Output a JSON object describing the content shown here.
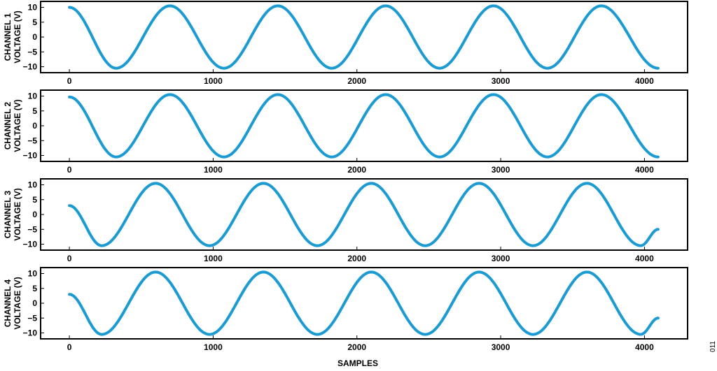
{
  "figure": {
    "xlabel": "SAMPLES",
    "figure_id": "011"
  },
  "style": {
    "line_color": "#1b9bd1",
    "frame_color": "#000000"
  },
  "chart_data": [
    {
      "type": "line",
      "ylabel_line1": "CHANNEL 1",
      "ylabel_line2": "VOLTAGE (V)",
      "xlim": [
        -200,
        4300
      ],
      "ylim": [
        -12,
        12
      ],
      "xticks": [
        0,
        1000,
        2000,
        3000,
        4000
      ],
      "yticks": [
        10,
        5,
        0,
        -5,
        -10
      ],
      "series": [
        {
          "amplitude": 10.5,
          "period": 750,
          "x_range": [
            0,
            4095
          ],
          "key_points": [
            [
              0,
              10
            ],
            [
              325,
              -10.5
            ],
            [
              700,
              10.5
            ],
            [
              1075,
              -10.5
            ],
            [
              1450,
              10.5
            ],
            [
              1825,
              -10.5
            ],
            [
              2200,
              10.5
            ],
            [
              2575,
              -10.5
            ],
            [
              2950,
              10.5
            ],
            [
              3325,
              -10.5
            ],
            [
              3700,
              10.5
            ],
            [
              4095,
              -10.5
            ]
          ]
        }
      ]
    },
    {
      "type": "line",
      "ylabel_line1": "CHANNEL 2",
      "ylabel_line2": "VOLTAGE (V)",
      "xlim": [
        -200,
        4300
      ],
      "ylim": [
        -12,
        12
      ],
      "xticks": [
        0,
        1000,
        2000,
        3000,
        4000
      ],
      "yticks": [
        10,
        5,
        0,
        -5,
        -10
      ],
      "series": [
        {
          "amplitude": 10.5,
          "period": 750,
          "x_range": [
            0,
            4095
          ],
          "key_points": [
            [
              0,
              9.7
            ],
            [
              325,
              -10.5
            ],
            [
              700,
              10.5
            ],
            [
              1075,
              -10.5
            ],
            [
              1450,
              10.5
            ],
            [
              1825,
              -10.5
            ],
            [
              2200,
              10.5
            ],
            [
              2575,
              -10.5
            ],
            [
              2950,
              10.5
            ],
            [
              3325,
              -10.5
            ],
            [
              3700,
              10.5
            ],
            [
              4095,
              -10.5
            ]
          ]
        }
      ]
    },
    {
      "type": "line",
      "ylabel_line1": "CHANNEL 3",
      "ylabel_line2": "VOLTAGE (V)",
      "xlim": [
        -200,
        4300
      ],
      "ylim": [
        -12,
        12
      ],
      "xticks": [
        0,
        1000,
        2000,
        3000,
        4000
      ],
      "yticks": [
        10,
        5,
        0,
        -5,
        -10
      ],
      "series": [
        {
          "amplitude": 10.5,
          "period": 750,
          "x_range": [
            0,
            4095
          ],
          "key_points": [
            [
              0,
              3
            ],
            [
              225,
              -10.5
            ],
            [
              600,
              10.5
            ],
            [
              975,
              -10.5
            ],
            [
              1350,
              10.5
            ],
            [
              1725,
              -10.5
            ],
            [
              2100,
              10.5
            ],
            [
              2475,
              -10.5
            ],
            [
              2850,
              10.5
            ],
            [
              3225,
              -10.5
            ],
            [
              3600,
              10.5
            ],
            [
              3975,
              -10.5
            ],
            [
              4095,
              -5
            ]
          ]
        }
      ]
    },
    {
      "type": "line",
      "ylabel_line1": "CHANNEL 4",
      "ylabel_line2": "VOLTAGE (V)",
      "xlim": [
        -200,
        4300
      ],
      "ylim": [
        -12,
        12
      ],
      "xticks": [
        0,
        1000,
        2000,
        3000,
        4000
      ],
      "yticks": [
        10,
        5,
        0,
        -5,
        -10
      ],
      "series": [
        {
          "amplitude": 10.5,
          "period": 750,
          "x_range": [
            0,
            4095
          ],
          "key_points": [
            [
              0,
              3
            ],
            [
              225,
              -10.5
            ],
            [
              600,
              10.5
            ],
            [
              975,
              -10.5
            ],
            [
              1350,
              10.5
            ],
            [
              1725,
              -10.5
            ],
            [
              2100,
              10.5
            ],
            [
              2475,
              -10.5
            ],
            [
              2850,
              10.5
            ],
            [
              3225,
              -10.5
            ],
            [
              3600,
              10.5
            ],
            [
              3975,
              -10.5
            ],
            [
              4095,
              -5
            ]
          ]
        }
      ]
    }
  ]
}
